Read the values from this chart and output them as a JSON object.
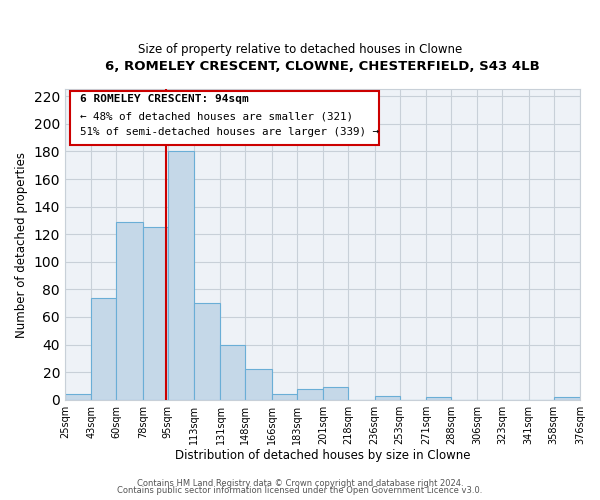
{
  "title": "6, ROMELEY CRESCENT, CLOWNE, CHESTERFIELD, S43 4LB",
  "subtitle": "Size of property relative to detached houses in Clowne",
  "xlabel": "Distribution of detached houses by size in Clowne",
  "ylabel": "Number of detached properties",
  "bar_color": "#c5d8e8",
  "bar_edge_color": "#6aaed6",
  "bins": [
    25,
    43,
    60,
    78,
    95,
    113,
    131,
    148,
    166,
    183,
    201,
    218,
    236,
    253,
    271,
    288,
    306,
    323,
    341,
    358,
    376
  ],
  "counts": [
    4,
    74,
    129,
    125,
    180,
    70,
    40,
    22,
    4,
    8,
    9,
    0,
    3,
    0,
    2,
    0,
    0,
    0,
    0,
    2
  ],
  "tick_labels": [
    "25sqm",
    "43sqm",
    "60sqm",
    "78sqm",
    "95sqm",
    "113sqm",
    "131sqm",
    "148sqm",
    "166sqm",
    "183sqm",
    "201sqm",
    "218sqm",
    "236sqm",
    "253sqm",
    "271sqm",
    "288sqm",
    "306sqm",
    "323sqm",
    "341sqm",
    "358sqm",
    "376sqm"
  ],
  "vline_x": 94,
  "vline_color": "#cc0000",
  "annotation_title": "6 ROMELEY CRESCENT: 94sqm",
  "annotation_line1": "← 48% of detached houses are smaller (321)",
  "annotation_line2": "51% of semi-detached houses are larger (339) →",
  "ylim": [
    0,
    225
  ],
  "yticks": [
    0,
    20,
    40,
    60,
    80,
    100,
    120,
    140,
    160,
    180,
    200,
    220
  ],
  "footer1": "Contains HM Land Registry data © Crown copyright and database right 2024.",
  "footer2": "Contains public sector information licensed under the Open Government Licence v3.0.",
  "grid_color": "#c8d0d8",
  "plot_bg_color": "#eef2f7"
}
